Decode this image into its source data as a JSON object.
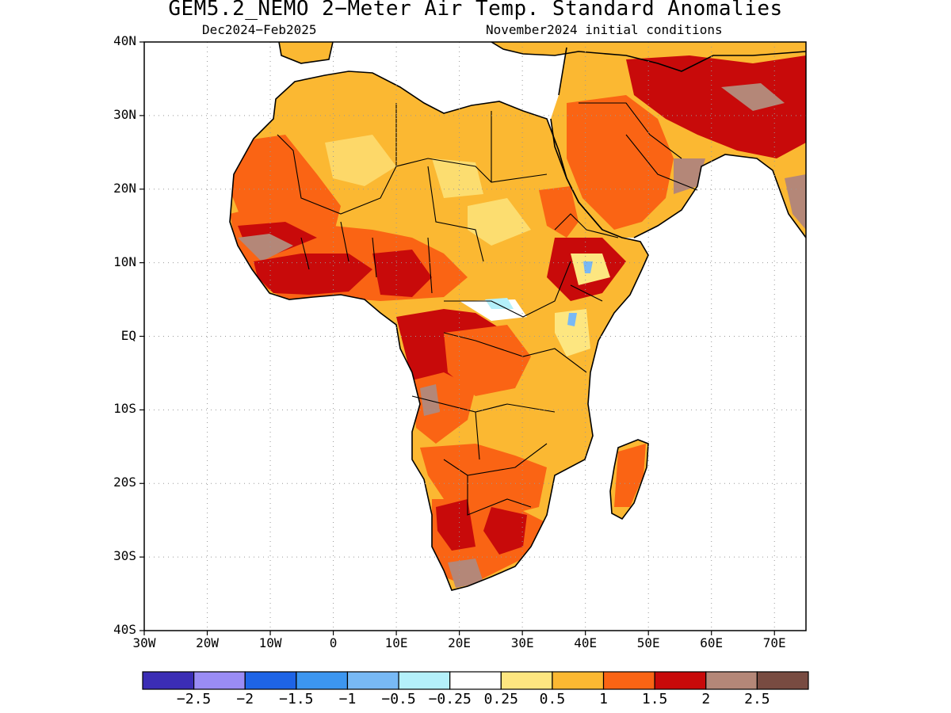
{
  "title": "GEM5.2_NEMO 2−Meter Air Temp. Standard Anomalies",
  "subtitle_left": "Dec2024−Feb2025",
  "subtitle_right": "November2024 initial conditions",
  "map": {
    "lon_range": [
      -30,
      75
    ],
    "lat_range": [
      -40,
      40
    ],
    "grid": true,
    "y_ticks": [
      "40N",
      "30N",
      "20N",
      "10N",
      "EQ",
      "10S",
      "20S",
      "30S",
      "40S"
    ],
    "x_ticks": [
      "30W",
      "20W",
      "10W",
      "0",
      "10E",
      "20E",
      "30E",
      "40E",
      "50E",
      "60E",
      "70E"
    ]
  },
  "colorbar": {
    "colors": [
      "#3b2db5",
      "#9a8cf5",
      "#1e64e6",
      "#3c96f0",
      "#78b9f5",
      "#b4f0fa",
      "#ffffff",
      "#fde680",
      "#fbb832",
      "#fa6414",
      "#c80a0a",
      "#b48778",
      "#784b41"
    ],
    "labels": [
      "−2.5",
      "−2",
      "−1.5",
      "−1",
      "−0.5",
      "−0.25",
      "0.25",
      "0.5",
      "1",
      "1.5",
      "2",
      "2.5"
    ]
  },
  "palette": {
    "light_yellow": "#fde680",
    "orange_light": "#fbb832",
    "orange": "#fa6414",
    "red": "#c80a0a",
    "brown_light": "#b48778",
    "blue_light": "#78b9f5",
    "cyan_light": "#b4f0fa"
  }
}
